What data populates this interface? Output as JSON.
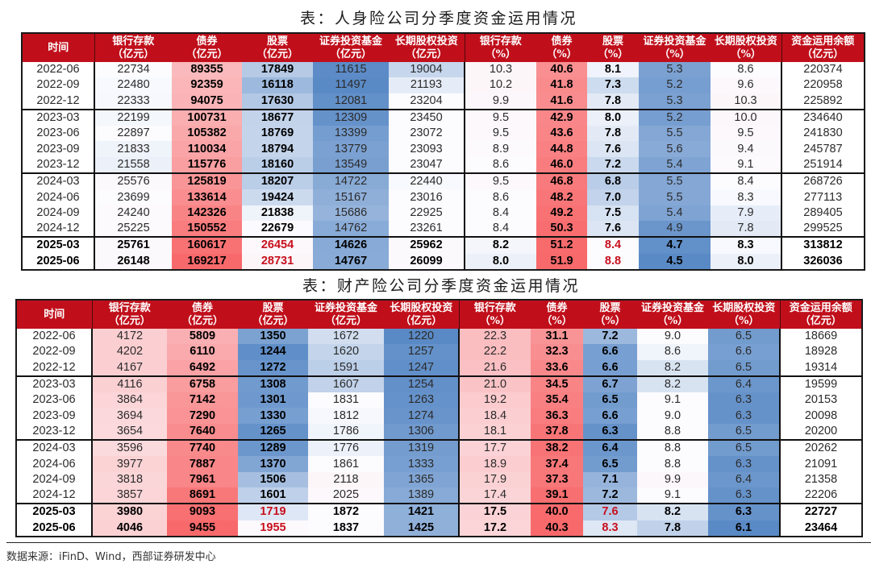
{
  "chart_data": [
    {
      "type": "table",
      "title": "表：人身险公司分季度资金运用情况",
      "columns": [
        {
          "label": "时间",
          "unit": ""
        },
        {
          "label": "银行存款",
          "unit": "（亿元）"
        },
        {
          "label": "债券",
          "unit": "（亿元）"
        },
        {
          "label": "股票",
          "unit": "（亿元）"
        },
        {
          "label": "证券投资基金",
          "unit": "（亿元）"
        },
        {
          "label": "长期股权投资",
          "unit": "（亿元）"
        },
        {
          "label": "银行存款",
          "unit": "（%）"
        },
        {
          "label": "债券",
          "unit": "（%）"
        },
        {
          "label": "股票",
          "unit": "（%）"
        },
        {
          "label": "证券投资基金",
          "unit": "（%）"
        },
        {
          "label": "长期股权投资",
          "unit": "（%）"
        },
        {
          "label": "资金运用余额",
          "unit": "（亿元）"
        }
      ],
      "rows": [
        [
          "2022-06",
          "22734",
          "89355",
          "17849",
          "11615",
          "19004",
          "10.3",
          "40.6",
          "8.1",
          "5.3",
          "8.6",
          "220374"
        ],
        [
          "2022-09",
          "22480",
          "92359",
          "16118",
          "11497",
          "21193",
          "10.2",
          "41.8",
          "7.3",
          "5.2",
          "9.6",
          "220958"
        ],
        [
          "2022-12",
          "22333",
          "94075",
          "17630",
          "12081",
          "23204",
          "9.9",
          "41.6",
          "7.8",
          "5.3",
          "10.3",
          "225892"
        ],
        [
          "2023-03",
          "22199",
          "100731",
          "18677",
          "12309",
          "23450",
          "9.5",
          "42.9",
          "8.0",
          "5.2",
          "10.0",
          "234640"
        ],
        [
          "2023-06",
          "22897",
          "105382",
          "18769",
          "13399",
          "23072",
          "9.5",
          "43.6",
          "7.8",
          "5.5",
          "9.5",
          "241830"
        ],
        [
          "2023-09",
          "21833",
          "110034",
          "18794",
          "13779",
          "23093",
          "8.9",
          "44.8",
          "7.6",
          "5.6",
          "9.4",
          "245787"
        ],
        [
          "2023-12",
          "21558",
          "115776",
          "18160",
          "13549",
          "23047",
          "8.6",
          "46.0",
          "7.2",
          "5.4",
          "9.1",
          "251914"
        ],
        [
          "2024-03",
          "25576",
          "125819",
          "18207",
          "14722",
          "22440",
          "9.5",
          "46.8",
          "6.8",
          "5.5",
          "8.4",
          "268726"
        ],
        [
          "2024-06",
          "23699",
          "133614",
          "19424",
          "15167",
          "23016",
          "8.6",
          "48.2",
          "7.0",
          "5.5",
          "8.3",
          "277113"
        ],
        [
          "2024-09",
          "24240",
          "142326",
          "21838",
          "15686",
          "22925",
          "8.4",
          "49.2",
          "7.5",
          "5.4",
          "7.9",
          "289405"
        ],
        [
          "2024-12",
          "25225",
          "150552",
          "22679",
          "14762",
          "23261",
          "8.4",
          "50.3",
          "7.6",
          "4.9",
          "7.8",
          "299525"
        ],
        [
          "2025-03",
          "25761",
          "160617",
          "26454",
          "14626",
          "25962",
          "8.2",
          "51.2",
          "8.4",
          "4.7",
          "8.3",
          "313812"
        ],
        [
          "2025-06",
          "26148",
          "169217",
          "28731",
          "14767",
          "26099",
          "8.0",
          "51.9",
          "8.8",
          "4.5",
          "8.0",
          "326036"
        ]
      ]
    },
    {
      "type": "table",
      "title": "表：财产险公司分季度资金运用情况",
      "columns": [
        {
          "label": "时间",
          "unit": ""
        },
        {
          "label": "银行存款",
          "unit": "（亿元）"
        },
        {
          "label": "债券",
          "unit": "（亿元）"
        },
        {
          "label": "股票",
          "unit": "（亿元）"
        },
        {
          "label": "证券投资基金",
          "unit": "（亿元）"
        },
        {
          "label": "长期股权投资",
          "unit": "（亿元）"
        },
        {
          "label": "银行存款",
          "unit": "（%）"
        },
        {
          "label": "债券",
          "unit": "（%）"
        },
        {
          "label": "股票",
          "unit": "（%）"
        },
        {
          "label": "证券投资基金",
          "unit": "（%）"
        },
        {
          "label": "长期股权投资",
          "unit": "（%）"
        },
        {
          "label": "资金运用余额",
          "unit": "（亿元）"
        }
      ],
      "rows": [
        [
          "2022-06",
          "4172",
          "5809",
          "1350",
          "1672",
          "1220",
          "22.3",
          "31.1",
          "7.2",
          "9.0",
          "6.5",
          "18669"
        ],
        [
          "2022-09",
          "4202",
          "6110",
          "1244",
          "1620",
          "1257",
          "22.2",
          "32.3",
          "6.6",
          "8.6",
          "6.6",
          "18928"
        ],
        [
          "2022-12",
          "4167",
          "6492",
          "1272",
          "1591",
          "1247",
          "21.6",
          "33.6",
          "6.6",
          "8.2",
          "6.5",
          "19314"
        ],
        [
          "2023-03",
          "4116",
          "6758",
          "1308",
          "1607",
          "1254",
          "21.0",
          "34.5",
          "6.7",
          "8.2",
          "6.4",
          "19599"
        ],
        [
          "2023-06",
          "3864",
          "7142",
          "1301",
          "1831",
          "1263",
          "19.2",
          "35.4",
          "6.5",
          "9.1",
          "6.3",
          "20153"
        ],
        [
          "2023-09",
          "3694",
          "7290",
          "1330",
          "1812",
          "1274",
          "18.4",
          "36.3",
          "6.6",
          "9.0",
          "6.3",
          "20098"
        ],
        [
          "2023-12",
          "3654",
          "7640",
          "1265",
          "1786",
          "1306",
          "18.1",
          "37.8",
          "6.3",
          "8.8",
          "6.5",
          "20200"
        ],
        [
          "2024-03",
          "3596",
          "7740",
          "1289",
          "1776",
          "1319",
          "17.7",
          "38.2",
          "6.4",
          "8.8",
          "6.5",
          "20262"
        ],
        [
          "2024-06",
          "3977",
          "7887",
          "1370",
          "1861",
          "1333",
          "18.9",
          "37.4",
          "6.5",
          "8.8",
          "6.3",
          "21091"
        ],
        [
          "2024-09",
          "3818",
          "7961",
          "1506",
          "2118",
          "1365",
          "17.9",
          "37.3",
          "7.1",
          "9.9",
          "6.4",
          "21358"
        ],
        [
          "2024-12",
          "3857",
          "8691",
          "1601",
          "2025",
          "1389",
          "17.4",
          "39.1",
          "7.2",
          "9.1",
          "6.3",
          "22206"
        ],
        [
          "2025-03",
          "3980",
          "9093",
          "1719",
          "1872",
          "1421",
          "17.5",
          "40.0",
          "7.6",
          "8.2",
          "6.3",
          "22727"
        ],
        [
          "2025-06",
          "4046",
          "9455",
          "1955",
          "1837",
          "1425",
          "17.2",
          "40.3",
          "8.3",
          "7.8",
          "6.1",
          "23464"
        ]
      ]
    }
  ],
  "footer": {
    "source": "数据来源：iFinD、Wind，西部证券研发中心"
  },
  "style": {
    "header_bg": "#C00F1B",
    "header_text": "#FFFFFF",
    "heatmap_colors": {
      "low": "#5A8AC6",
      "mid": "#FCFCFF",
      "high": "#F8696B"
    },
    "heatmap_column_blocks": [
      [
        1,
        5
      ],
      [
        6,
        10
      ]
    ],
    "separator_before_columns": [
      1,
      6,
      11
    ],
    "bold_columns": [
      2,
      3,
      7,
      8
    ],
    "group_break_before_rows": [
      3,
      7,
      11
    ],
    "latest_rows": [
      11,
      12
    ],
    "latest_highlight_columns": [
      3,
      8
    ],
    "highlight_text": "#C8101E"
  }
}
